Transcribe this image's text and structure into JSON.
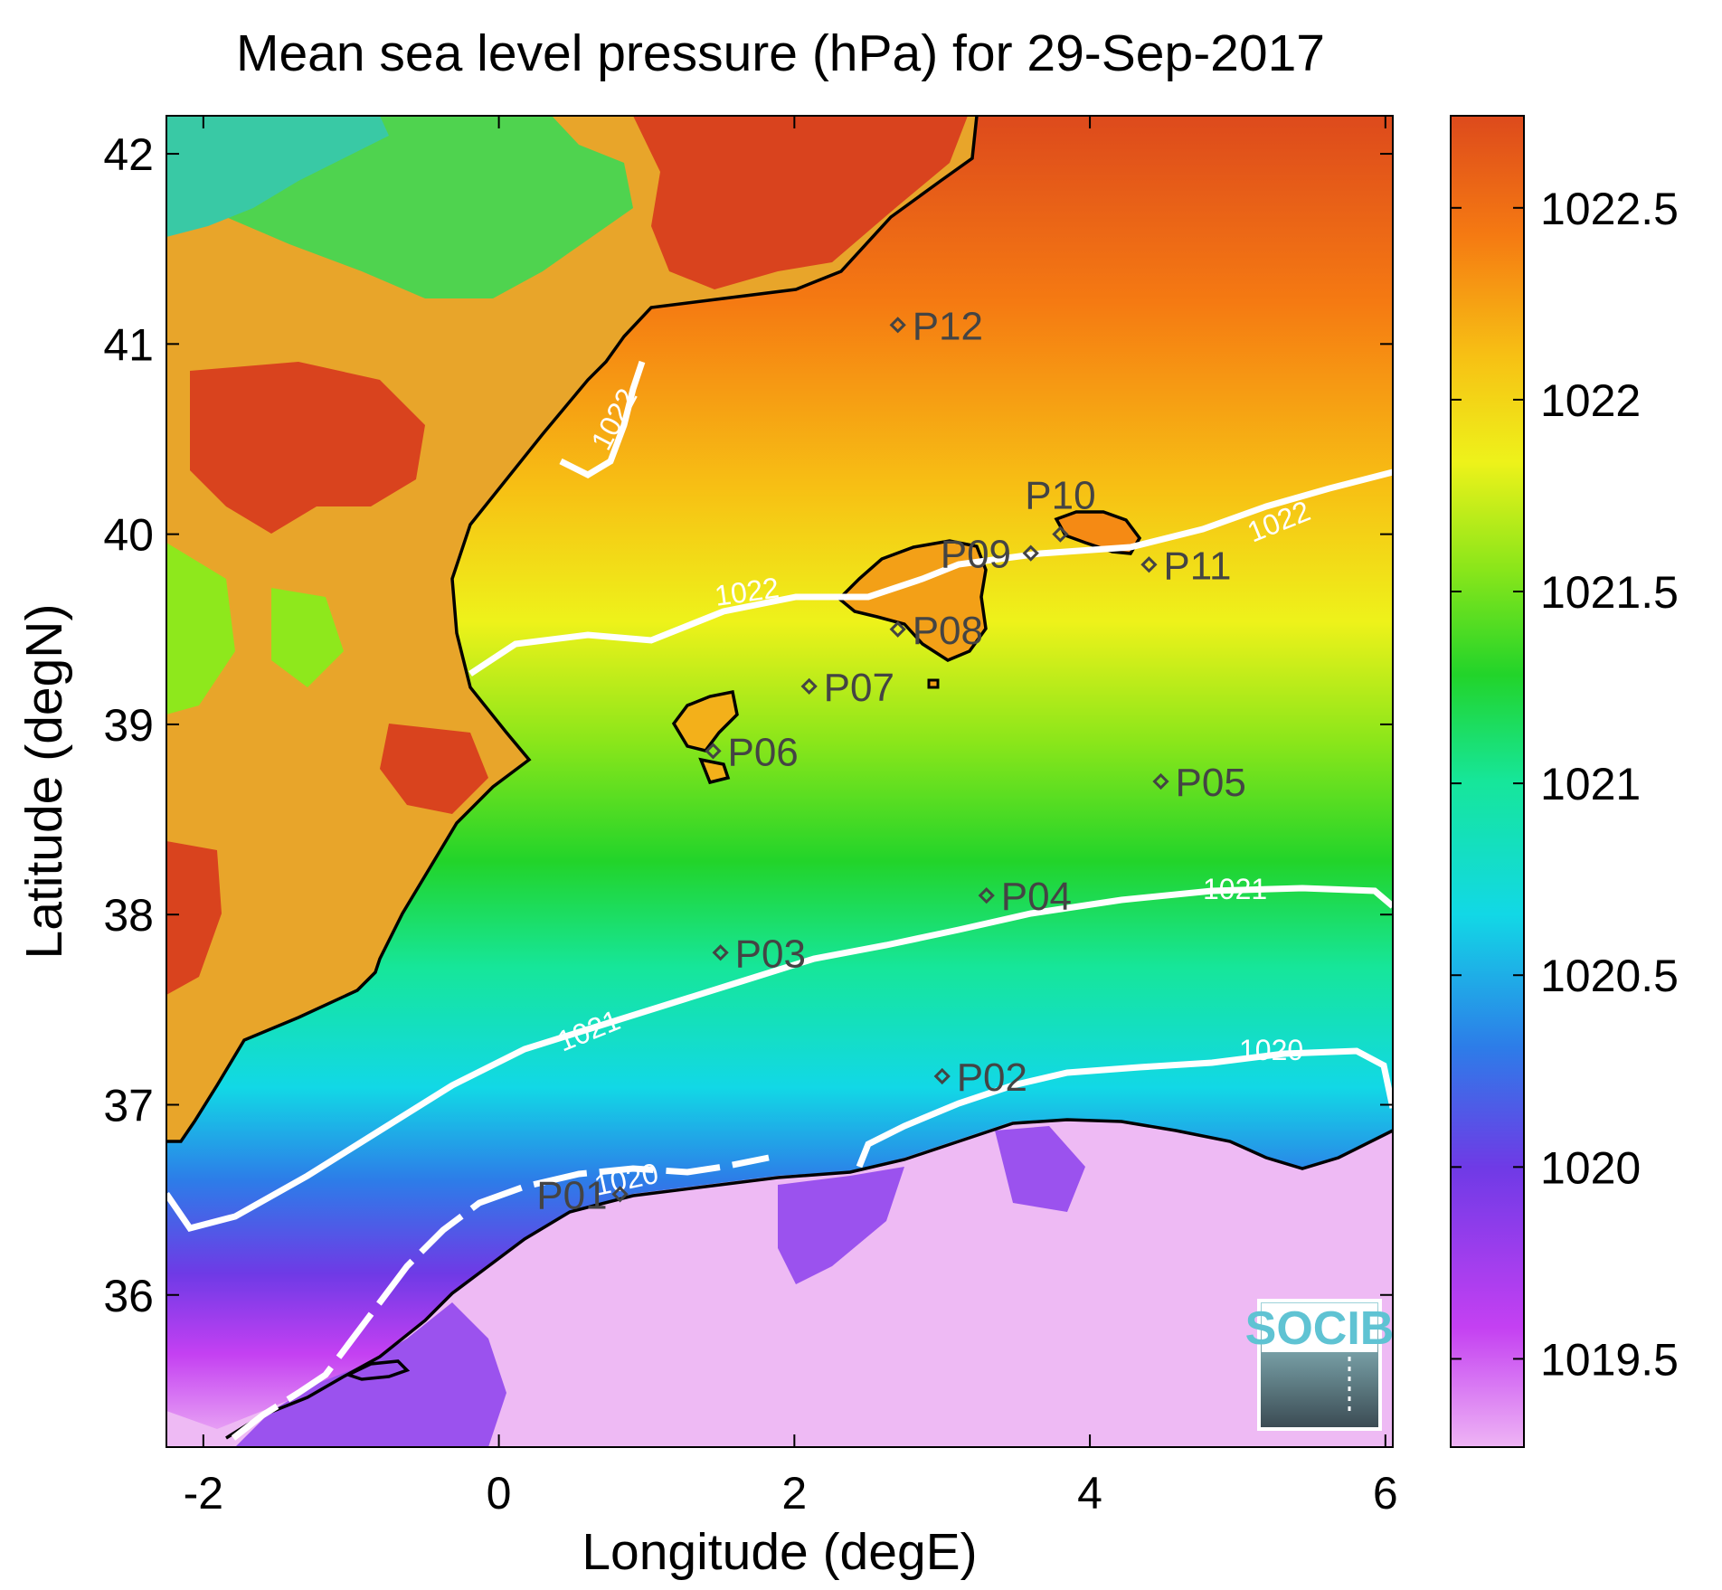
{
  "title": "Mean sea level pressure (hPa) for 29-Sep-2017",
  "map": {
    "xlabel": "Longitude (degE)",
    "ylabel": "Latitude (degN)",
    "xlim": [
      -2.25,
      6.05
    ],
    "ylim": [
      35.2,
      42.2
    ],
    "xticks": [
      {
        "value": -2,
        "label": "-2"
      },
      {
        "value": 0,
        "label": "0"
      },
      {
        "value": 2,
        "label": "2"
      },
      {
        "value": 4,
        "label": "4"
      },
      {
        "value": 6,
        "label": "6"
      }
    ],
    "yticks": [
      {
        "value": 36,
        "label": "36"
      },
      {
        "value": 37,
        "label": "37"
      },
      {
        "value": 38,
        "label": "38"
      },
      {
        "value": 39,
        "label": "39"
      },
      {
        "value": 40,
        "label": "40"
      },
      {
        "value": 41,
        "label": "41"
      },
      {
        "value": 42,
        "label": "42"
      }
    ],
    "stations": [
      {
        "name": "P01",
        "lon": 0.82,
        "lat": 36.53
      },
      {
        "name": "P02",
        "lon": 3.0,
        "lat": 37.15
      },
      {
        "name": "P03",
        "lon": 1.5,
        "lat": 37.8
      },
      {
        "name": "P04",
        "lon": 3.3,
        "lat": 38.1
      },
      {
        "name": "P05",
        "lon": 4.48,
        "lat": 38.7
      },
      {
        "name": "P06",
        "lon": 1.45,
        "lat": 38.86
      },
      {
        "name": "P07",
        "lon": 2.1,
        "lat": 39.2
      },
      {
        "name": "P08",
        "lon": 2.7,
        "lat": 39.5
      },
      {
        "name": "P09",
        "lon": 3.6,
        "lat": 39.9
      },
      {
        "name": "P10",
        "lon": 3.8,
        "lat": 40.0
      },
      {
        "name": "P11",
        "lon": 4.4,
        "lat": 39.84
      },
      {
        "name": "P12",
        "lon": 2.7,
        "lat": 41.1
      }
    ],
    "contours": [
      {
        "level": "1022",
        "labels": [
          "1022",
          "1022",
          "1022"
        ]
      },
      {
        "level": "1021",
        "labels": [
          "1021",
          "1021"
        ]
      },
      {
        "level": "1020",
        "labels": [
          "1020",
          "1020"
        ]
      }
    ],
    "logo": "SOCIB"
  },
  "colorbar": {
    "range": [
      1019.27,
      1022.74
    ],
    "ticks": [
      {
        "value": 1019.5,
        "label": "1019.5"
      },
      {
        "value": 1020,
        "label": "1020"
      },
      {
        "value": 1020.5,
        "label": "1020.5"
      },
      {
        "value": 1021,
        "label": "1021"
      },
      {
        "value": 1021.5,
        "label": "1021.5"
      },
      {
        "value": 1022,
        "label": "1022"
      },
      {
        "value": 1022.5,
        "label": "1022.5"
      }
    ],
    "colors": [
      "#eeb4f4",
      "#c440f2",
      "#6f3ae6",
      "#2d7ce8",
      "#12d8e6",
      "#16e69a",
      "#22d42a",
      "#8be61a",
      "#eef21a",
      "#f7c014",
      "#f57a12",
      "#dd4a1c"
    ]
  }
}
